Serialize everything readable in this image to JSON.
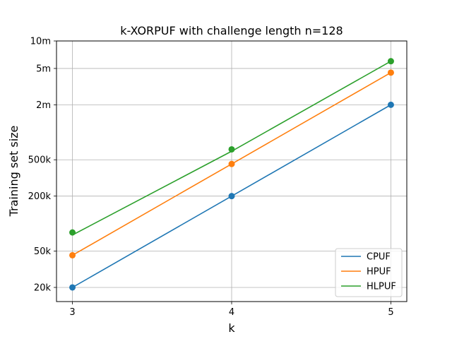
{
  "chart_data": {
    "type": "line",
    "title": "k-XORPUF with challenge length n=128",
    "xlabel": "k",
    "ylabel": "Training set size",
    "x": [
      3,
      4,
      5
    ],
    "xlim": [
      2.9,
      5.1
    ],
    "xticks": [
      3,
      4,
      5
    ],
    "xtick_labels": [
      "3",
      "4",
      "5"
    ],
    "yscale": "log",
    "ylim": [
      14000,
      10000000
    ],
    "yticks": [
      20000,
      50000,
      200000,
      500000,
      2000000,
      5000000,
      10000000
    ],
    "ytick_labels": [
      "20k",
      "50k",
      "200k",
      "500k",
      "2m",
      "5m",
      "10m"
    ],
    "grid": true,
    "legend_position": "lower-right",
    "series": [
      {
        "name": "CPUF",
        "color": "#1f77b4",
        "points": [
          20000,
          200000,
          2000000
        ],
        "line": [
          20000,
          200000,
          2000000
        ]
      },
      {
        "name": "HPUF",
        "color": "#ff7f0e",
        "points": [
          45000,
          450000,
          4500000
        ],
        "line": [
          45000,
          450000,
          4500000
        ]
      },
      {
        "name": "HLPUF",
        "color": "#2ca02c",
        "points": [
          80000,
          650000,
          6000000
        ],
        "line": [
          75000,
          620000,
          6000000
        ]
      }
    ]
  }
}
